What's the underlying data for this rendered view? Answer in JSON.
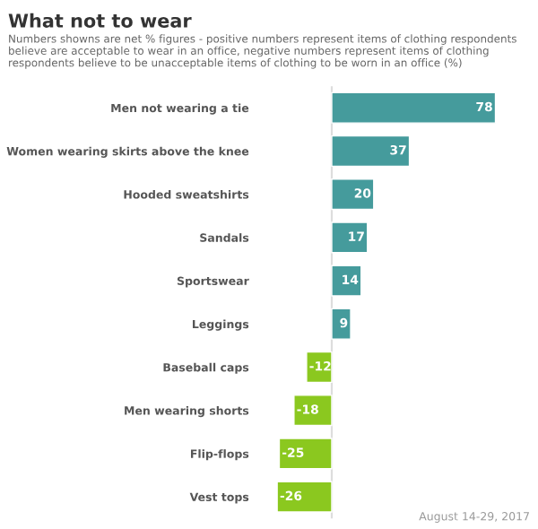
{
  "chart_data": {
    "type": "bar",
    "orientation": "horizontal",
    "title": "What not to wear",
    "subtitle": "Numbers showns are net % figures - positive numbers represent items of clothing respondents believe are acceptable to wear in an office, negative numbers represent items of clothing respondents believe to be unacceptable items of clothing to be worn in an office (%)",
    "categories": [
      "Men not wearing a tie",
      "Women wearing skirts above the knee",
      "Hooded sweatshirts",
      "Sandals",
      "Sportswear",
      "Leggings",
      "Baseball caps",
      "Men wearing shorts",
      "Flip-flops",
      "Vest tops"
    ],
    "values": [
      78,
      37,
      20,
      17,
      14,
      9,
      -12,
      -18,
      -25,
      -26
    ],
    "colors": [
      "#459b9c",
      "#459b9c",
      "#459b9c",
      "#459b9c",
      "#459b9c",
      "#459b9c",
      "#8bc81f",
      "#8bc81f",
      "#8bc81f",
      "#8bc81f"
    ],
    "data_labels": true,
    "grid": false,
    "tick_labels": "y",
    "annotations": [
      "August 14-29, 2017"
    ]
  }
}
